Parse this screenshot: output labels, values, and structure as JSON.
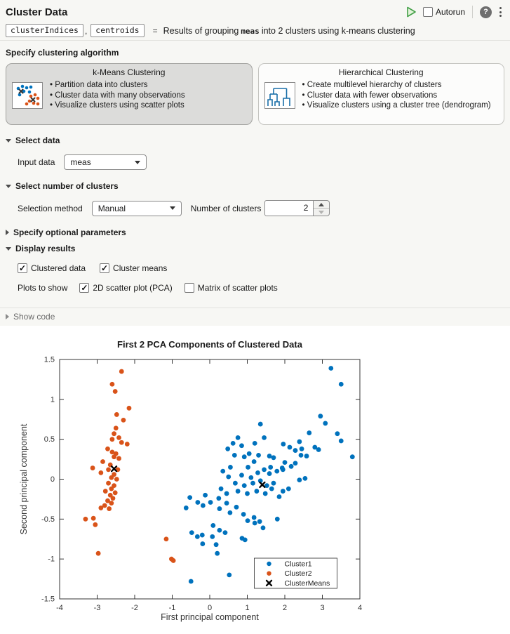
{
  "header": {
    "title": "Cluster Data",
    "autorun_label": "Autorun",
    "help_glyph": "?"
  },
  "subtitle": {
    "output1": "clusterIndices",
    "comma": ",",
    "output2": "centroids",
    "equals": "=",
    "desc_prefix": "Results of grouping",
    "code_term": "meas",
    "desc_suffix": "into 2 clusters using k-means clustering"
  },
  "algorithm_section": {
    "title": "Specify clustering algorithm",
    "cards": [
      {
        "title": "k-Means Clustering",
        "selected": true,
        "bullets": [
          "Partition data into clusters",
          "Cluster data with many observations",
          "Visualize clusters using scatter plots"
        ]
      },
      {
        "title": "Hierarchical Clustering",
        "selected": false,
        "bullets": [
          "Create multilevel hierarchy of clusters",
          "Cluster data with fewer observations",
          "Visualize clusters using a cluster tree (dendrogram)"
        ]
      }
    ]
  },
  "select_data": {
    "title": "Select data",
    "input_label": "Input data",
    "input_value": "meas"
  },
  "clusters_section": {
    "title": "Select number of clusters",
    "method_label": "Selection method",
    "method_value": "Manual",
    "count_label": "Number of clusters",
    "count_value": "2"
  },
  "optional_section": {
    "title": "Specify optional parameters"
  },
  "display_section": {
    "title": "Display results",
    "checkboxes": [
      {
        "label": "Clustered data",
        "checked": true
      },
      {
        "label": "Cluster means",
        "checked": true
      }
    ],
    "plots_label": "Plots to show",
    "plot_checkboxes": [
      {
        "label": "2D scatter plot (PCA)",
        "checked": true
      },
      {
        "label": "Matrix of scatter plots",
        "checked": false
      }
    ]
  },
  "show_code": {
    "title": "Show code"
  },
  "colors": {
    "cluster1": "#0072BD",
    "cluster2": "#D95319",
    "means": "#000000",
    "run_green": "#43a047"
  },
  "chart_data": {
    "type": "scatter",
    "title": "First 2 PCA Components of Clustered Data",
    "xlabel": "First principal component",
    "ylabel": "Second principal component",
    "xlim": [
      -4,
      4
    ],
    "ylim": [
      -1.5,
      1.5
    ],
    "xticks": [
      -4,
      -3,
      -2,
      -1,
      0,
      1,
      2,
      3,
      4
    ],
    "yticks": [
      -1.5,
      -1,
      -0.5,
      0,
      0.5,
      1,
      1.5
    ],
    "grid": false,
    "legend_position": "lower right",
    "series": [
      {
        "name": "Cluster1",
        "marker": "circle",
        "color": "#0072BD",
        "points": [
          [
            3.23,
            1.39
          ],
          [
            3.5,
            1.19
          ],
          [
            2.95,
            0.79
          ],
          [
            3.08,
            0.7
          ],
          [
            1.35,
            0.69
          ],
          [
            2.65,
            0.58
          ],
          [
            3.4,
            0.57
          ],
          [
            3.5,
            0.48
          ],
          [
            2.39,
            0.47
          ],
          [
            1.96,
            0.44
          ],
          [
            2.13,
            0.4
          ],
          [
            2.45,
            0.38
          ],
          [
            2.8,
            0.4
          ],
          [
            2.9,
            0.37
          ],
          [
            2.28,
            0.36
          ],
          [
            2.43,
            0.3
          ],
          [
            2.58,
            0.29
          ],
          [
            1.59,
            0.29
          ],
          [
            1.7,
            0.27
          ],
          [
            3.8,
            0.28
          ],
          [
            2.28,
            0.2
          ],
          [
            2.0,
            0.21
          ],
          [
            2.17,
            0.16
          ],
          [
            1.93,
            0.14
          ],
          [
            1.79,
            0.1
          ],
          [
            1.95,
            0.12
          ],
          [
            1.62,
            0.15
          ],
          [
            1.59,
            0.07
          ],
          [
            2.39,
            -0.01
          ],
          [
            2.54,
            0.01
          ],
          [
            2.1,
            -0.12
          ],
          [
            1.85,
            -0.22
          ],
          [
            1.95,
            -0.15
          ],
          [
            0.75,
            0.52
          ],
          [
            1.2,
            0.45
          ],
          [
            1.45,
            0.52
          ],
          [
            0.62,
            0.45
          ],
          [
            0.48,
            0.38
          ],
          [
            0.85,
            0.42
          ],
          [
            1.05,
            0.32
          ],
          [
            1.3,
            0.3
          ],
          [
            0.66,
            0.3
          ],
          [
            0.92,
            0.28
          ],
          [
            1.18,
            0.22
          ],
          [
            0.55,
            0.15
          ],
          [
            1.02,
            0.15
          ],
          [
            1.28,
            0.08
          ],
          [
            1.45,
            0.12
          ],
          [
            0.35,
            0.1
          ],
          [
            0.85,
            0.05
          ],
          [
            1.1,
            0.02
          ],
          [
            0.5,
            0.03
          ],
          [
            0.68,
            -0.05
          ],
          [
            0.92,
            -0.08
          ],
          [
            1.15,
            -0.05
          ],
          [
            1.35,
            -0.02
          ],
          [
            1.52,
            -0.08
          ],
          [
            1.7,
            -0.05
          ],
          [
            0.3,
            -0.12
          ],
          [
            0.45,
            -0.18
          ],
          [
            0.75,
            -0.15
          ],
          [
            1.0,
            -0.18
          ],
          [
            1.25,
            -0.15
          ],
          [
            1.48,
            -0.18
          ],
          [
            1.65,
            -0.12
          ],
          [
            -0.12,
            -0.2
          ],
          [
            -0.53,
            -0.23
          ],
          [
            -0.32,
            -0.29
          ],
          [
            -0.18,
            -0.33
          ],
          [
            0.02,
            -0.29
          ],
          [
            0.24,
            -0.24
          ],
          [
            0.26,
            -0.37
          ],
          [
            0.45,
            -0.3
          ],
          [
            0.54,
            -0.42
          ],
          [
            0.71,
            -0.35
          ],
          [
            0.9,
            -0.44
          ],
          [
            -0.63,
            -0.36
          ],
          [
            1.01,
            -0.52
          ],
          [
            1.18,
            -0.48
          ],
          [
            1.33,
            -0.53
          ],
          [
            1.2,
            -0.55
          ],
          [
            1.42,
            -0.61
          ],
          [
            1.8,
            -0.5
          ],
          [
            -0.48,
            -0.67
          ],
          [
            -0.33,
            -0.72
          ],
          [
            -0.2,
            -0.7
          ],
          [
            0.09,
            -0.58
          ],
          [
            0.26,
            -0.64
          ],
          [
            0.07,
            -0.72
          ],
          [
            0.41,
            -0.67
          ],
          [
            0.86,
            -0.74
          ],
          [
            0.94,
            -0.76
          ],
          [
            -0.19,
            -0.81
          ],
          [
            0.17,
            -0.82
          ],
          [
            0.2,
            -0.93
          ],
          [
            -0.5,
            -1.28
          ],
          [
            0.52,
            -1.2
          ]
        ]
      },
      {
        "name": "Cluster2",
        "marker": "circle",
        "color": "#D95319",
        "points": [
          [
            -2.35,
            1.35
          ],
          [
            -2.6,
            1.19
          ],
          [
            -2.52,
            1.1
          ],
          [
            -2.15,
            0.89
          ],
          [
            -2.48,
            0.81
          ],
          [
            -2.3,
            0.74
          ],
          [
            -2.5,
            0.64
          ],
          [
            -2.55,
            0.57
          ],
          [
            -2.42,
            0.52
          ],
          [
            -2.6,
            0.5
          ],
          [
            -2.35,
            0.46
          ],
          [
            -2.2,
            0.44
          ],
          [
            -2.72,
            0.38
          ],
          [
            -2.6,
            0.34
          ],
          [
            -2.5,
            0.32
          ],
          [
            -2.55,
            0.28
          ],
          [
            -2.42,
            0.26
          ],
          [
            -2.85,
            0.22
          ],
          [
            -2.65,
            0.18
          ],
          [
            -3.12,
            0.14
          ],
          [
            -2.7,
            0.12
          ],
          [
            -2.45,
            0.12
          ],
          [
            -2.9,
            0.08
          ],
          [
            -2.55,
            0.06
          ],
          [
            -2.62,
            0.02
          ],
          [
            -2.48,
            0.0
          ],
          [
            -2.7,
            -0.05
          ],
          [
            -2.55,
            -0.08
          ],
          [
            -2.62,
            -0.12
          ],
          [
            -2.78,
            -0.15
          ],
          [
            -2.52,
            -0.17
          ],
          [
            -2.65,
            -0.2
          ],
          [
            -2.58,
            -0.24
          ],
          [
            -2.72,
            -0.27
          ],
          [
            -2.62,
            -0.3
          ],
          [
            -2.8,
            -0.33
          ],
          [
            -2.68,
            -0.37
          ],
          [
            -2.9,
            -0.36
          ],
          [
            -3.31,
            -0.5
          ],
          [
            -3.1,
            -0.49
          ],
          [
            -3.05,
            -0.57
          ],
          [
            -2.97,
            -0.93
          ],
          [
            -1.16,
            -0.75
          ],
          [
            -1.02,
            -1.0
          ],
          [
            -0.97,
            -1.02
          ]
        ]
      },
      {
        "name": "ClusterMeans",
        "marker": "x",
        "color": "#000000",
        "points": [
          [
            -2.55,
            0.13
          ],
          [
            1.4,
            -0.07
          ]
        ]
      }
    ]
  }
}
